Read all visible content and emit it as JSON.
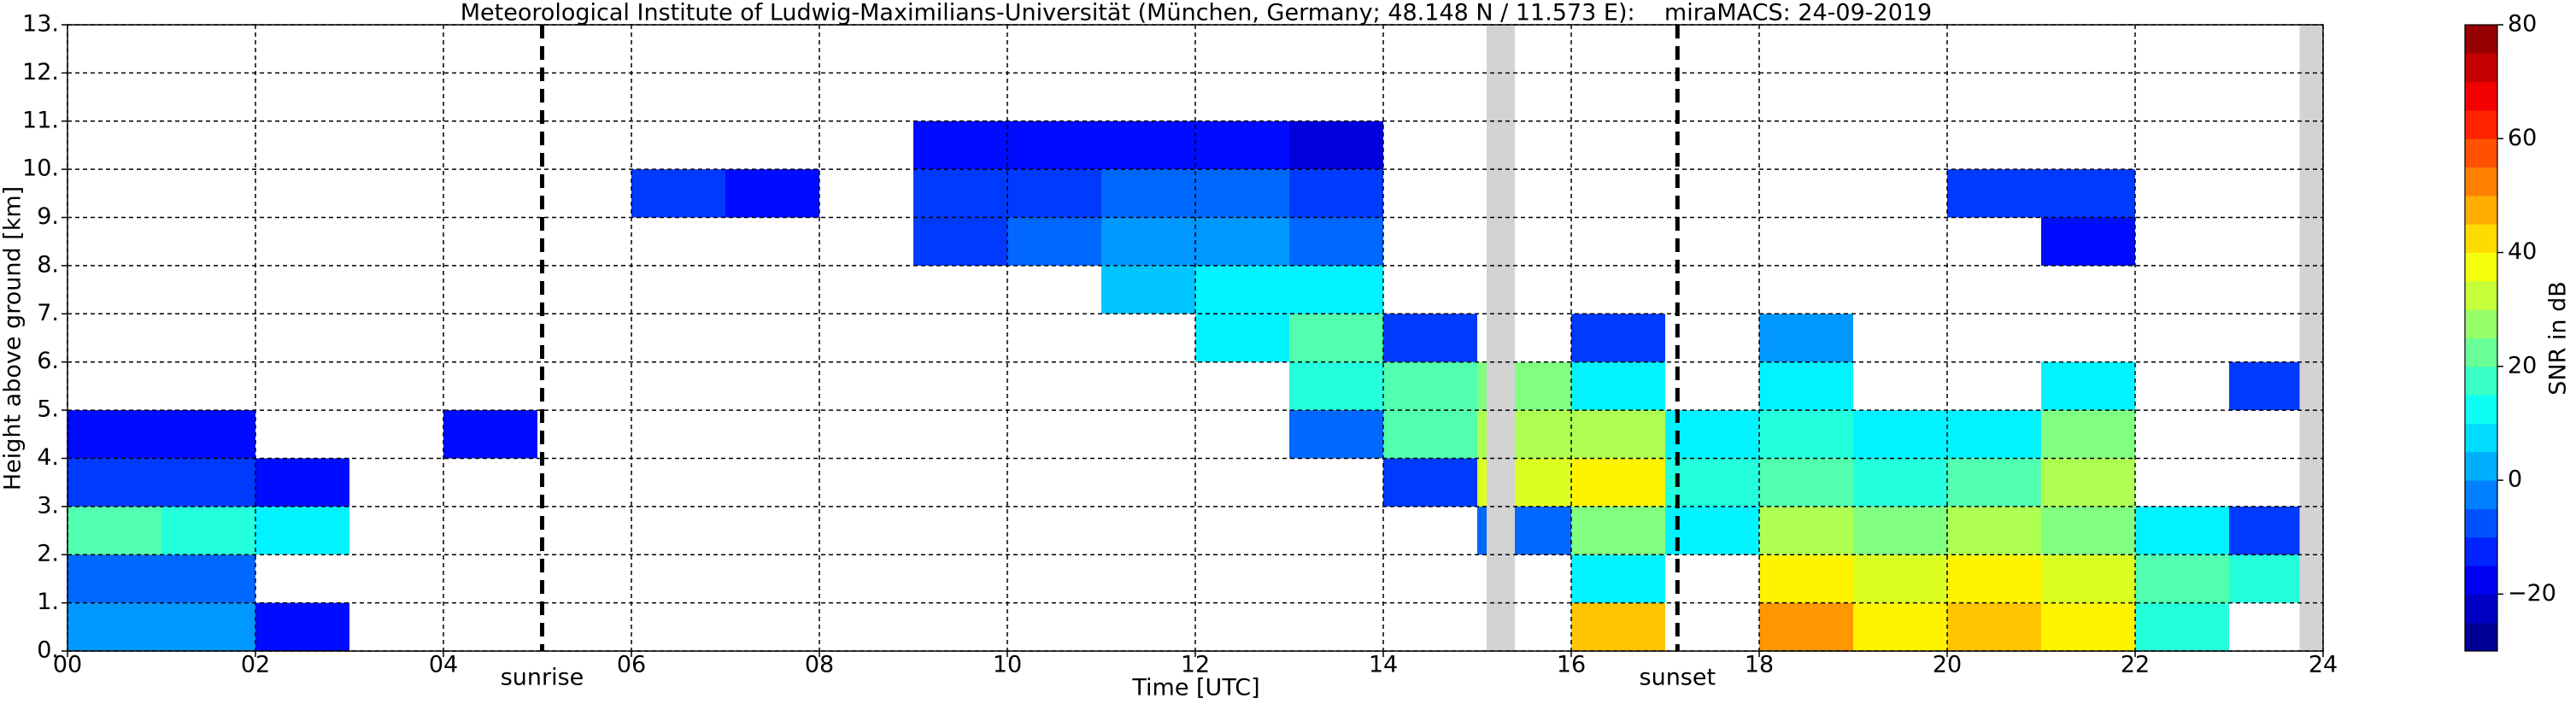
{
  "chart_data": {
    "type": "heatmap",
    "title": "Meteorological Institute of Ludwig-Maximilians-Universität (München, Germany; 48.148 N / 11.573 E):    miraMACS: 24-09-2019",
    "x_label": "Time [UTC]",
    "y_label": "Height above ground [km]",
    "colorbar_label": "SNR in dB",
    "colormap": "jet",
    "grid": true,
    "xlim": [
      0,
      24
    ],
    "ylim": [
      0,
      13
    ],
    "clim": [
      -30,
      80
    ],
    "xticks": [
      {
        "value": 0,
        "label": "00"
      },
      {
        "value": 2,
        "label": "02"
      },
      {
        "value": 4,
        "label": "04"
      },
      {
        "value": 6,
        "label": "06"
      },
      {
        "value": 8,
        "label": "08"
      },
      {
        "value": 10,
        "label": "10"
      },
      {
        "value": 12,
        "label": "12"
      },
      {
        "value": 14,
        "label": "14"
      },
      {
        "value": 16,
        "label": "16"
      },
      {
        "value": 18,
        "label": "18"
      },
      {
        "value": 20,
        "label": "20"
      },
      {
        "value": 22,
        "label": "22"
      },
      {
        "value": 24,
        "label": "24"
      }
    ],
    "yticks": [
      {
        "value": 0,
        "label": "0."
      },
      {
        "value": 1,
        "label": "1."
      },
      {
        "value": 2,
        "label": "2."
      },
      {
        "value": 3,
        "label": "3."
      },
      {
        "value": 4,
        "label": "4."
      },
      {
        "value": 5,
        "label": "5."
      },
      {
        "value": 6,
        "label": "6."
      },
      {
        "value": 7,
        "label": "7."
      },
      {
        "value": 8,
        "label": "8."
      },
      {
        "value": 9,
        "label": "9."
      },
      {
        "value": 10,
        "label": "10."
      },
      {
        "value": 11,
        "label": "11."
      },
      {
        "value": 12,
        "label": "12."
      },
      {
        "value": 13,
        "label": "13."
      }
    ],
    "cticks": [
      {
        "value": -20,
        "label": "−20"
      },
      0,
      20,
      40,
      60,
      80
    ],
    "x_bins": [
      0,
      1,
      2,
      3,
      4,
      5,
      6,
      7,
      8,
      9,
      10,
      11,
      12,
      13,
      14,
      15,
      16,
      17,
      18,
      19,
      20,
      21,
      22,
      23,
      24
    ],
    "y_bins": [
      0,
      1,
      2,
      3,
      4,
      5,
      6,
      7,
      8,
      9,
      10,
      11,
      12,
      13
    ],
    "values": [
      [
        0,
        0,
        -15,
        null,
        null,
        null,
        null,
        null,
        null,
        null,
        null,
        null,
        null,
        null,
        null,
        null,
        45,
        null,
        50,
        40,
        45,
        40,
        15,
        null
      ],
      [
        -5,
        -5,
        null,
        null,
        null,
        null,
        null,
        null,
        null,
        null,
        null,
        null,
        null,
        null,
        null,
        null,
        10,
        null,
        40,
        35,
        40,
        35,
        20,
        15
      ],
      [
        20,
        15,
        10,
        null,
        null,
        null,
        null,
        null,
        null,
        null,
        null,
        null,
        null,
        null,
        null,
        -5,
        25,
        10,
        30,
        25,
        30,
        25,
        10,
        -10
      ],
      [
        -10,
        -10,
        -15,
        null,
        null,
        null,
        null,
        null,
        null,
        null,
        null,
        null,
        null,
        null,
        -10,
        35,
        40,
        15,
        20,
        15,
        20,
        30,
        null,
        null
      ],
      [
        -15,
        -15,
        null,
        null,
        -15,
        null,
        null,
        null,
        null,
        null,
        null,
        null,
        null,
        -5,
        20,
        30,
        30,
        10,
        15,
        10,
        10,
        25,
        null,
        null
      ],
      [
        null,
        null,
        null,
        null,
        null,
        null,
        null,
        null,
        null,
        null,
        null,
        null,
        null,
        15,
        20,
        25,
        10,
        null,
        10,
        null,
        null,
        10,
        null,
        -10
      ],
      [
        null,
        null,
        null,
        null,
        null,
        null,
        null,
        null,
        null,
        null,
        null,
        null,
        10,
        20,
        -10,
        null,
        -10,
        null,
        0,
        null,
        null,
        null,
        null,
        null
      ],
      [
        null,
        null,
        null,
        null,
        null,
        null,
        null,
        null,
        null,
        null,
        null,
        5,
        10,
        10,
        null,
        null,
        null,
        null,
        null,
        null,
        null,
        null,
        null,
        null
      ],
      [
        null,
        null,
        null,
        null,
        null,
        null,
        null,
        null,
        null,
        -10,
        -5,
        0,
        0,
        -5,
        null,
        null,
        null,
        null,
        null,
        null,
        null,
        -15,
        null,
        null
      ],
      [
        null,
        null,
        null,
        null,
        null,
        null,
        -10,
        -15,
        null,
        -10,
        -10,
        -5,
        -5,
        -10,
        null,
        null,
        null,
        null,
        null,
        null,
        -10,
        -10,
        null,
        null
      ],
      [
        null,
        null,
        null,
        null,
        null,
        null,
        null,
        null,
        null,
        -15,
        -15,
        -15,
        -15,
        -20,
        null,
        null,
        null,
        null,
        null,
        null,
        null,
        null,
        null,
        null
      ],
      [
        null,
        null,
        null,
        null,
        null,
        null,
        null,
        null,
        null,
        null,
        null,
        null,
        null,
        null,
        null,
        null,
        null,
        null,
        null,
        null,
        null,
        null,
        null,
        null
      ],
      [
        null,
        null,
        null,
        null,
        null,
        null,
        null,
        null,
        null,
        null,
        null,
        null,
        null,
        null,
        null,
        null,
        null,
        null,
        null,
        null,
        null,
        null,
        null,
        null
      ]
    ],
    "no_data_spans": [
      [
        15.1,
        15.4
      ],
      [
        23.75,
        24
      ]
    ],
    "annotations": [
      {
        "x": 5.05,
        "text": "sunrise"
      },
      {
        "x": 17.13,
        "text": "sunset"
      }
    ]
  }
}
